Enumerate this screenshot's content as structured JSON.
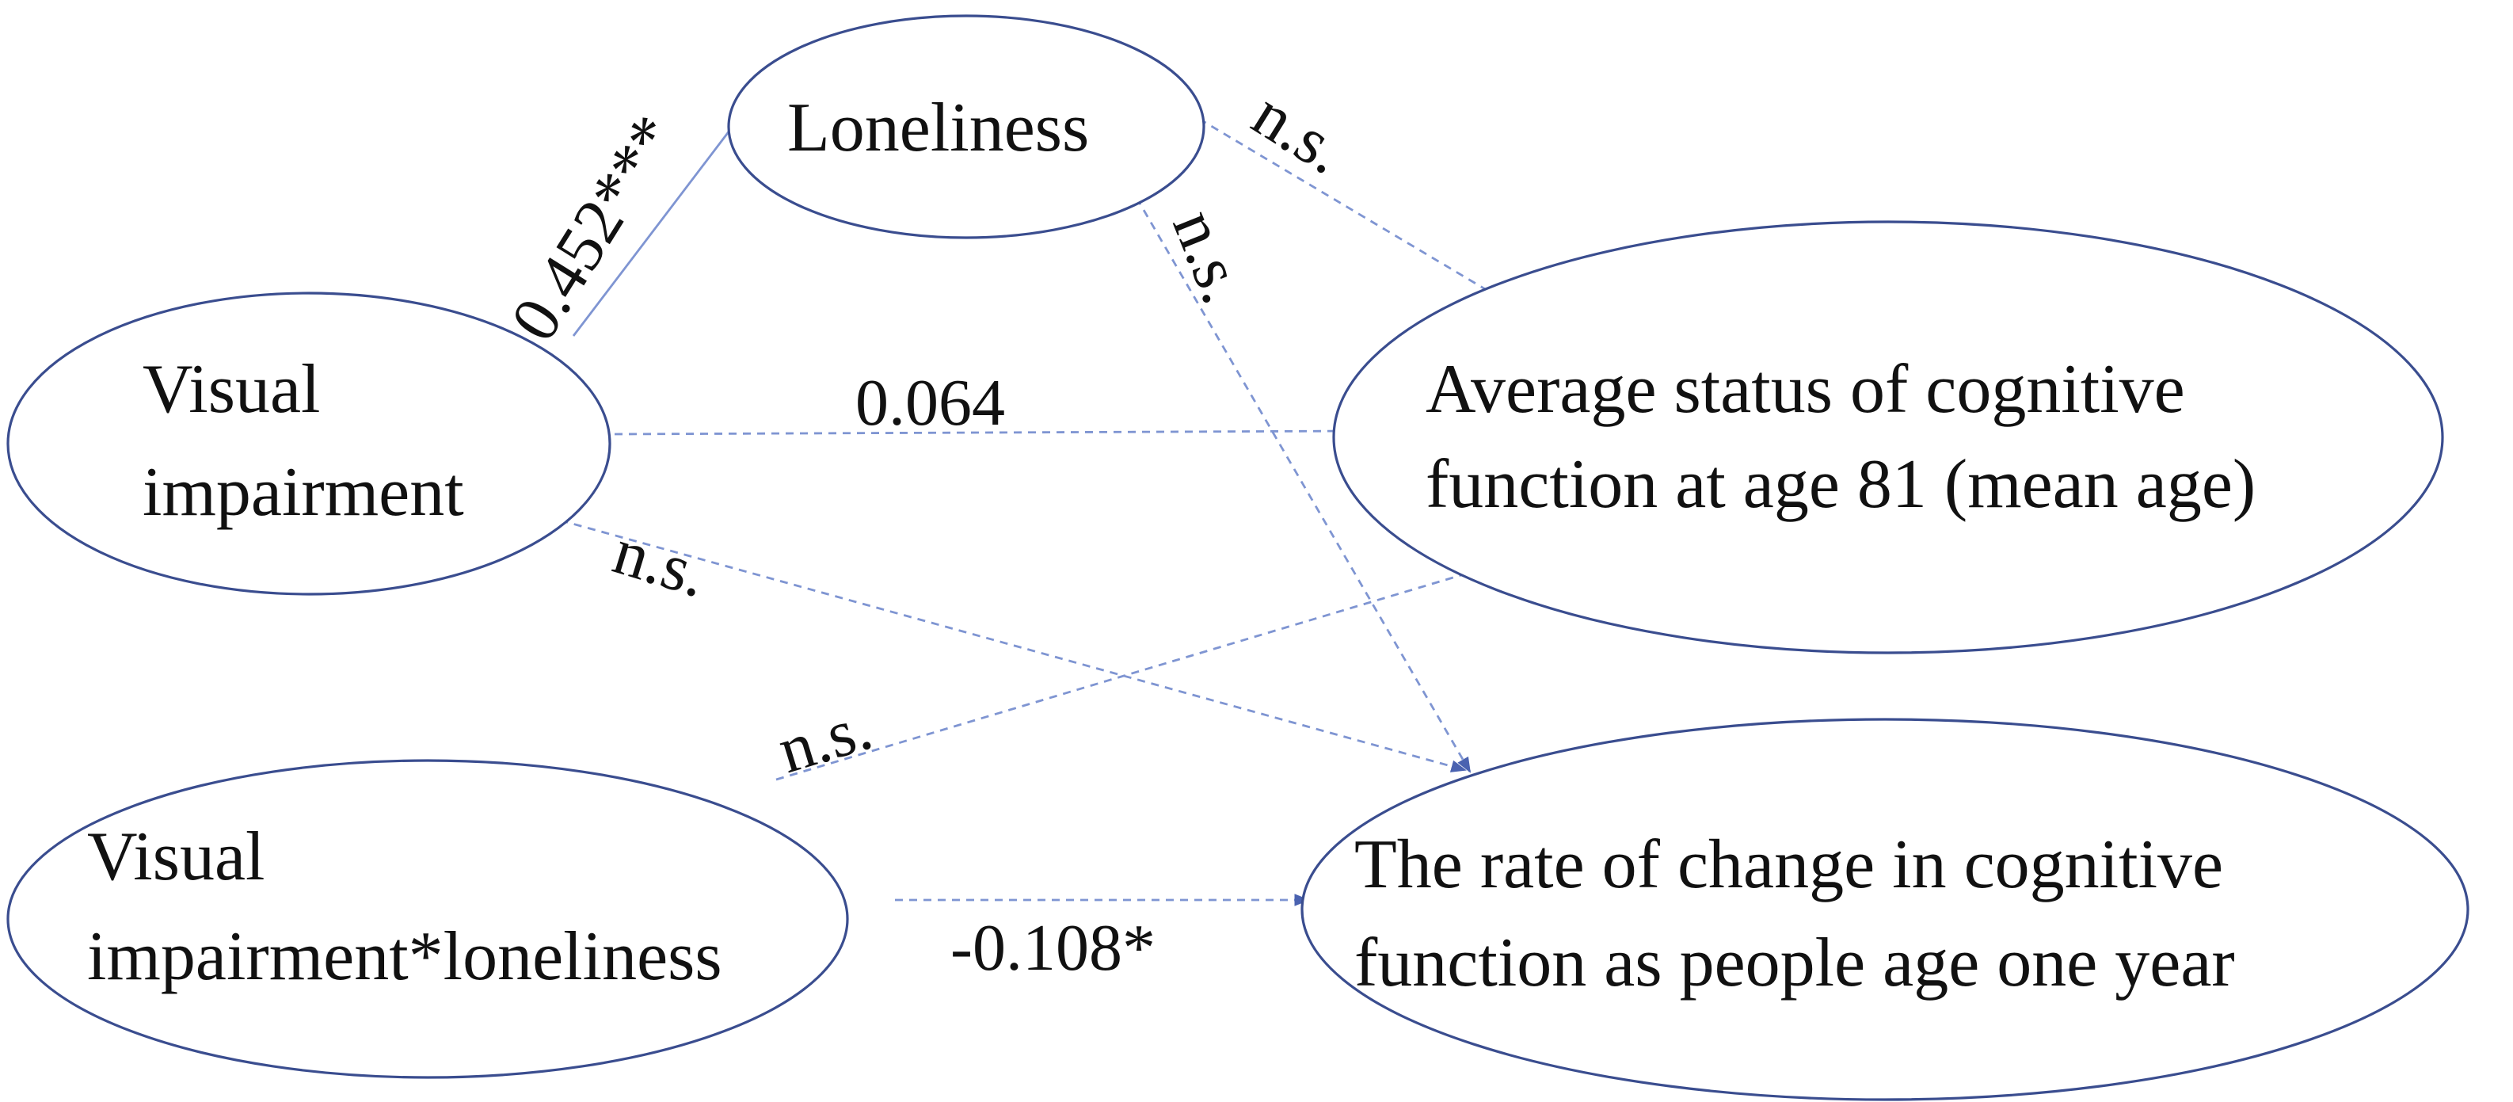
{
  "nodes": [
    {
      "lines": [
        "Loneliness"
      ]
    },
    {
      "lines": [
        "Visual",
        "impairment"
      ]
    },
    {
      "lines": [
        "Average status of cognitive",
        "function at age 81 (mean age)"
      ]
    },
    {
      "lines": [
        "Visual",
        "impairment*loneliness"
      ]
    },
    {
      "lines": [
        "The rate of change in cognitive",
        "function as people age one year"
      ]
    }
  ],
  "edges": [
    {
      "label": "0.452***"
    },
    {
      "label": "n.s."
    },
    {
      "label": "n.s."
    },
    {
      "label": "0.064"
    },
    {
      "label": "n.s."
    },
    {
      "label": "n.s."
    },
    {
      "label": "-0.108*"
    }
  ]
}
